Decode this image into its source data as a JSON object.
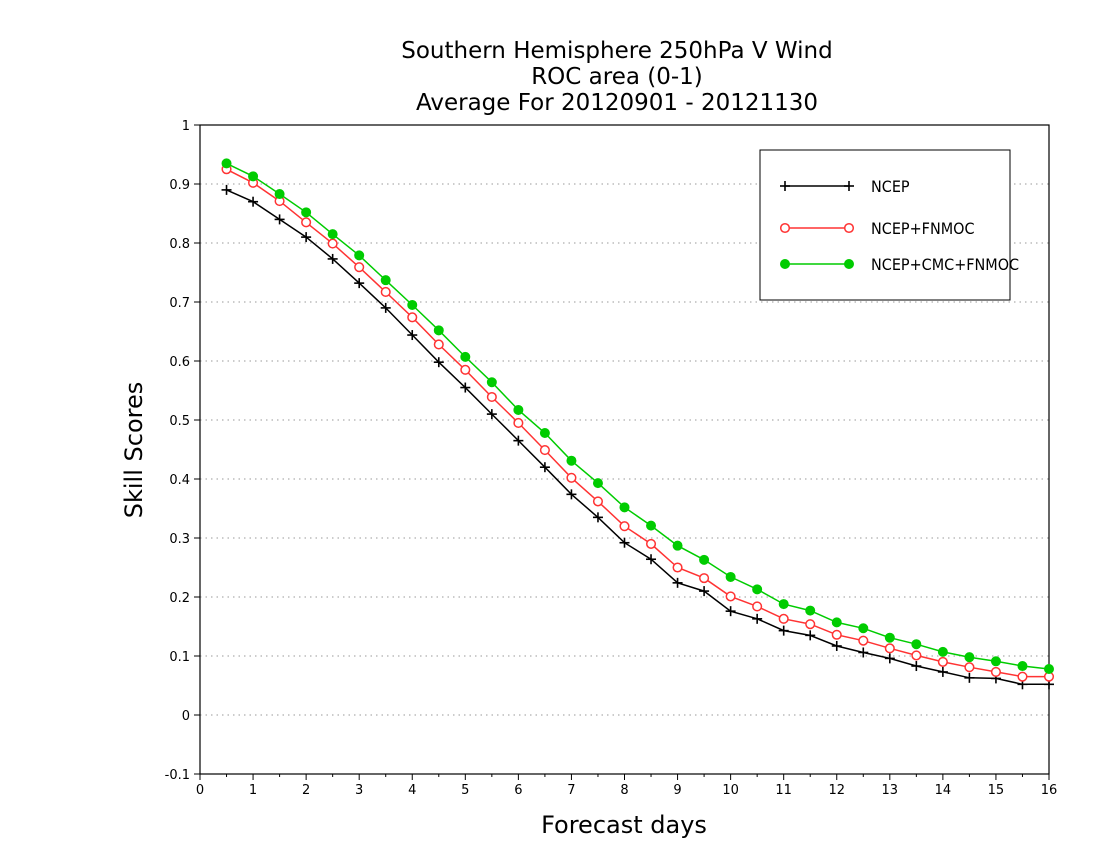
{
  "chart_data": {
    "type": "line",
    "title_lines": [
      "Southern Hemisphere 250hPa V Wind",
      "ROC area (0-1)",
      "Average For 20120901 - 20121130"
    ],
    "xlabel": "Forecast days",
    "ylabel": "Skill Scores",
    "xlim": [
      0,
      16
    ],
    "ylim": [
      -0.1,
      1
    ],
    "x_ticks": [
      "0",
      "1",
      "2",
      "3",
      "4",
      "5",
      "6",
      "7",
      "8",
      "9",
      "10",
      "11",
      "12",
      "13",
      "14",
      "15",
      "16"
    ],
    "y_ticks": [
      "-0.1",
      "0",
      "0.1",
      "0.2",
      "0.3",
      "0.4",
      "0.5",
      "0.6",
      "0.7",
      "0.8",
      "0.9",
      "1"
    ],
    "grid": "horizontal-dotted",
    "legend_position": "top-right",
    "x": [
      0.5,
      1,
      1.5,
      2,
      2.5,
      3,
      3.5,
      4,
      4.5,
      5,
      5.5,
      6,
      6.5,
      7,
      7.5,
      8,
      8.5,
      9,
      9.5,
      10,
      10.5,
      11,
      11.5,
      12,
      12.5,
      13,
      13.5,
      14,
      14.5,
      15,
      15.5,
      16
    ],
    "series": [
      {
        "name": "NCEP",
        "color": "#000000",
        "marker": "plus",
        "values": [
          0.89,
          0.87,
          0.84,
          0.81,
          0.773,
          0.732,
          0.69,
          0.644,
          0.598,
          0.555,
          0.51,
          0.465,
          0.42,
          0.374,
          0.335,
          0.292,
          0.264,
          0.224,
          0.21,
          0.176,
          0.163,
          0.143,
          0.135,
          0.117,
          0.106,
          0.096,
          0.083,
          0.073,
          0.063,
          0.062,
          0.052,
          0.052
        ]
      },
      {
        "name": "NCEP+FNMOC",
        "color": "#ff3333",
        "marker": "open-circle",
        "values": [
          0.925,
          0.902,
          0.871,
          0.835,
          0.799,
          0.759,
          0.717,
          0.674,
          0.628,
          0.585,
          0.539,
          0.495,
          0.449,
          0.402,
          0.362,
          0.32,
          0.29,
          0.25,
          0.232,
          0.201,
          0.184,
          0.163,
          0.154,
          0.136,
          0.126,
          0.113,
          0.101,
          0.09,
          0.081,
          0.073,
          0.065,
          0.065
        ]
      },
      {
        "name": "NCEP+CMC+FNMOC",
        "color": "#00cc00",
        "marker": "filled-circle",
        "values": [
          0.935,
          0.913,
          0.883,
          0.852,
          0.815,
          0.779,
          0.737,
          0.695,
          0.652,
          0.607,
          0.564,
          0.517,
          0.478,
          0.431,
          0.393,
          0.352,
          0.321,
          0.287,
          0.263,
          0.234,
          0.213,
          0.188,
          0.177,
          0.157,
          0.147,
          0.131,
          0.12,
          0.107,
          0.098,
          0.091,
          0.083,
          0.078
        ]
      }
    ]
  }
}
